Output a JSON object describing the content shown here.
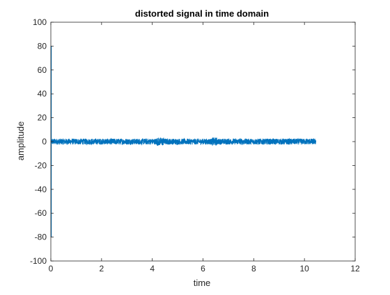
{
  "chart_data": {
    "type": "line",
    "title": "distorted signal in time domain",
    "xlabel": "time",
    "ylabel": "amplitude",
    "xlim": [
      0,
      12
    ],
    "ylim": [
      -100,
      100
    ],
    "xticks": [
      0,
      2,
      4,
      6,
      8,
      10,
      12
    ],
    "yticks": [
      -100,
      -80,
      -60,
      -40,
      -20,
      0,
      20,
      40,
      60,
      80,
      100
    ],
    "grid": false,
    "series": [
      {
        "color": "#0072BD",
        "x": [
          0,
          0.001,
          0.002,
          0.5,
          1,
          2,
          3,
          4,
          4.3,
          5,
          6,
          6.45,
          7,
          8,
          9,
          10,
          10.45
        ],
        "y": [
          0,
          80,
          -80,
          2,
          -2,
          1.5,
          -1.5,
          2,
          4,
          -2,
          2,
          3,
          -2,
          2,
          -2,
          2,
          0
        ],
        "noise_amplitude": 2.5
      }
    ]
  }
}
